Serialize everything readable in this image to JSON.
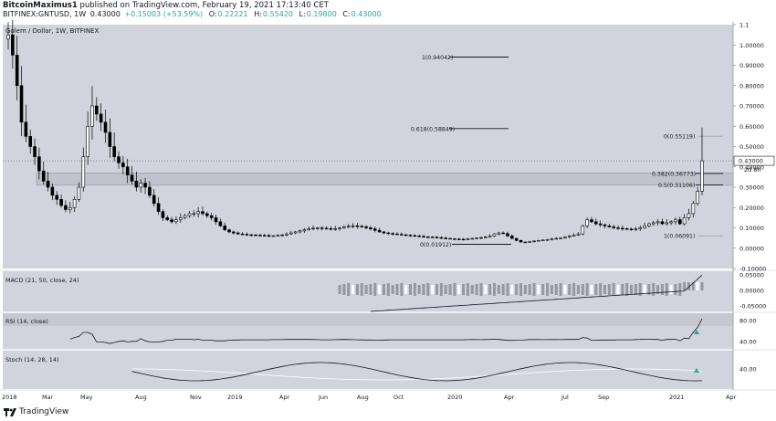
{
  "header": {
    "published_line_user": "BitcoinMaximus1",
    "published_line_text": "published on TradingView.com, February 19, 2021 17:13:40 CET",
    "symbol": "BITFINEX:GNTUSD, 1W",
    "open_label": "0.43000",
    "change_label": "+0.15003 (+53.59%)",
    "o_label": "O:",
    "o_value": "0.22221",
    "h_label": "H:",
    "h_value": "0.55420",
    "l_label": "L:",
    "l_value": "0.19800",
    "c_label": "C:",
    "c_value": "0.43000"
  },
  "chart_title": "Golem / Dollar, 1W, BITFINEX",
  "price_badge": "0.43000",
  "countdown_badge": "2d 8h",
  "colors": {
    "pane_bg": "#d1d4dc",
    "candle": "#000000",
    "candle_fill_up": "#ffffff",
    "zone": "#c0c3cb",
    "rsi_band": "#c6c8d0",
    "signal_arrow": "#26a69a"
  },
  "chart_data": {
    "type": "candlestick",
    "price_axis": {
      "ticks": [
        "1.1",
        "1.00000",
        "0.90000",
        "0.80000",
        "0.70000",
        "0.60000",
        "0.50000",
        "0.40000",
        "0.30000",
        "0.20000",
        "0.10000",
        "0.00000",
        "-0.10000"
      ],
      "values": [
        1.1,
        1.0,
        0.9,
        0.8,
        0.7,
        0.6,
        0.5,
        0.4,
        0.3,
        0.2,
        0.1,
        0.0,
        -0.1
      ],
      "ylim": [
        -0.1,
        1.1
      ]
    },
    "time_axis": {
      "labels": [
        "2018",
        "Mar",
        "May",
        "Aug",
        "Nov",
        "2019",
        "Apr",
        "Jun",
        "Aug",
        "Oct",
        "2020",
        "Apr",
        "Jul",
        "Sep",
        "2021",
        "Apr"
      ]
    },
    "fib_levels": [
      {
        "label": "1(0.94042)",
        "value": 0.94042
      },
      {
        "label": "0.618(0.58849)",
        "value": 0.58849
      },
      {
        "label": "0(0.55119)",
        "value": 0.55119
      },
      {
        "label": "0.382(0.36773)",
        "value": 0.36773
      },
      {
        "label": "0.5(0.31106)",
        "value": 0.31106
      },
      {
        "label": "0(0.01912)",
        "value": 0.01912
      },
      {
        "label": "1(0.06091)",
        "value": 0.06091
      }
    ],
    "resistance_zone": [
      0.31,
      0.37
    ],
    "weekly_closes": [
      1.05,
      0.95,
      0.8,
      0.62,
      0.55,
      0.5,
      0.45,
      0.38,
      0.33,
      0.3,
      0.26,
      0.24,
      0.21,
      0.19,
      0.2,
      0.24,
      0.3,
      0.45,
      0.6,
      0.7,
      0.66,
      0.62,
      0.57,
      0.5,
      0.45,
      0.42,
      0.4,
      0.36,
      0.33,
      0.3,
      0.32,
      0.3,
      0.26,
      0.22,
      0.18,
      0.15,
      0.14,
      0.13,
      0.14,
      0.15,
      0.16,
      0.17,
      0.17,
      0.18,
      0.17,
      0.16,
      0.15,
      0.13,
      0.11,
      0.09,
      0.08,
      0.075,
      0.07,
      0.068,
      0.066,
      0.065,
      0.064,
      0.063,
      0.062,
      0.06,
      0.061,
      0.063,
      0.065,
      0.07,
      0.075,
      0.08,
      0.085,
      0.09,
      0.095,
      0.098,
      0.1,
      0.098,
      0.096,
      0.094,
      0.096,
      0.1,
      0.105,
      0.108,
      0.11,
      0.108,
      0.105,
      0.1,
      0.095,
      0.088,
      0.08,
      0.075,
      0.072,
      0.07,
      0.068,
      0.066,
      0.064,
      0.062,
      0.06,
      0.058,
      0.056,
      0.055,
      0.054,
      0.052,
      0.05,
      0.048,
      0.046,
      0.045,
      0.044,
      0.043,
      0.045,
      0.048,
      0.05,
      0.052,
      0.055,
      0.06,
      0.07,
      0.075,
      0.072,
      0.06,
      0.048,
      0.038,
      0.03,
      0.028,
      0.032,
      0.035,
      0.038,
      0.04,
      0.042,
      0.045,
      0.048,
      0.05,
      0.055,
      0.06,
      0.065,
      0.07,
      0.11,
      0.14,
      0.13,
      0.12,
      0.115,
      0.11,
      0.105,
      0.1,
      0.098,
      0.096,
      0.094,
      0.092,
      0.095,
      0.1,
      0.11,
      0.12,
      0.125,
      0.13,
      0.12,
      0.125,
      0.13,
      0.14,
      0.12,
      0.15,
      0.17,
      0.22,
      0.28,
      0.43
    ],
    "indicators": [
      {
        "name": "MACD (21, 50, close, 24)",
        "ticks": [
          "0.05000",
          "0.00000",
          "-0.05000"
        ]
      },
      {
        "name": "RSI (14, close)",
        "ticks": [
          "80.00",
          "40.00"
        ]
      },
      {
        "name": "Stoch (14, 28, 14)",
        "ticks": [
          "40.00"
        ]
      }
    ]
  },
  "footer": {
    "brand": "TradingView"
  }
}
